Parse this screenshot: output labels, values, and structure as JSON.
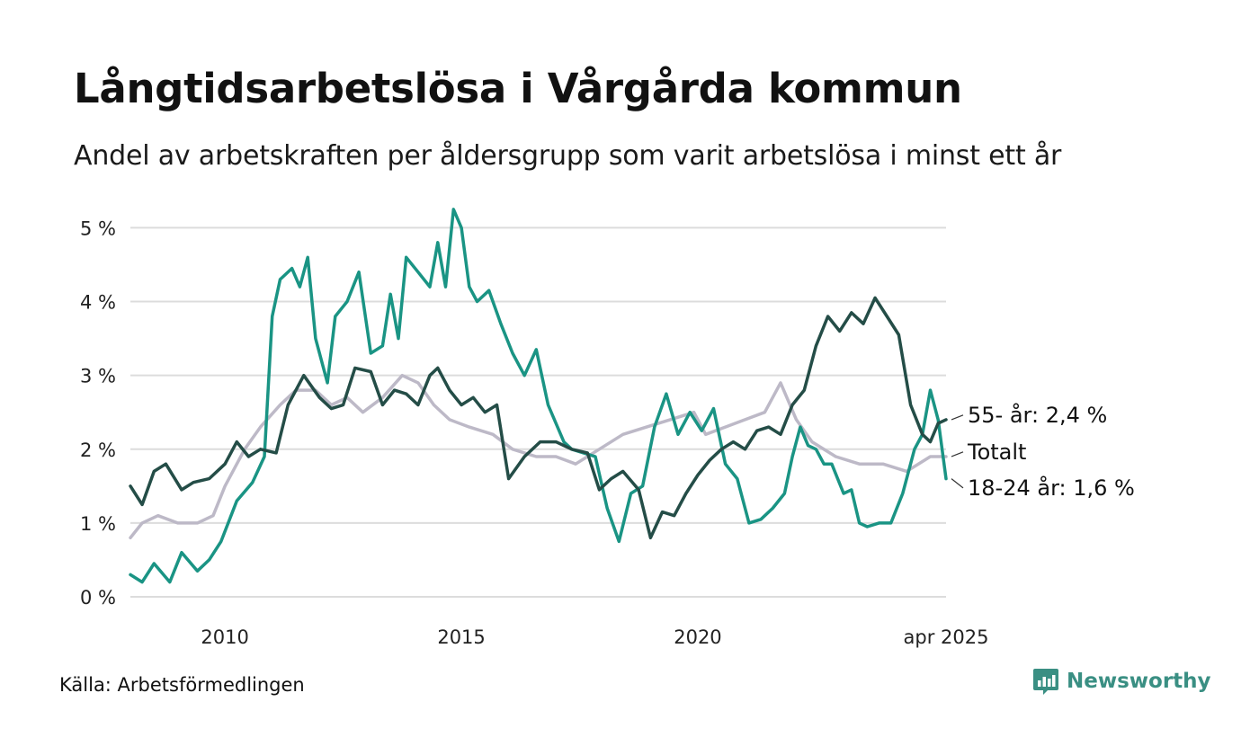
{
  "header": {
    "title": "Långtidsarbetslösa i Vårgårda kommun",
    "subtitle": "Andel av arbetskraften per åldersgrupp som varit arbetslösa i minst ett år"
  },
  "footer": {
    "source": "Källa: Arbetsförmedlingen",
    "brand": "Newsworthy",
    "brand_icon": "bar-chart-icon",
    "brand_color": "#3a8f83"
  },
  "chart_data": {
    "type": "line",
    "title": "Långtidsarbetslösa i Vårgårda kommun",
    "subtitle": "Andel av arbetskraften per åldersgrupp som varit arbetslösa i minst ett år",
    "xlabel": "",
    "ylabel": "",
    "x_range": [
      "2008-01",
      "2025-04"
    ],
    "ylim": [
      0,
      5.2
    ],
    "y_ticks": [
      0,
      1,
      2,
      3,
      4,
      5
    ],
    "y_tick_labels": [
      "0 %",
      "1 %",
      "2 %",
      "3 %",
      "4 %",
      "5 %"
    ],
    "x_ticks": [
      "2010-01",
      "2015-01",
      "2020-01",
      "2025-04"
    ],
    "x_tick_labels": [
      "2010",
      "2015",
      "2020",
      "apr 2025"
    ],
    "grid": "horizontal",
    "legend": "direct labels at line ends",
    "series": [
      {
        "name": "Totalt",
        "label": "Totalt",
        "color": "#bdb9c7",
        "points": [
          [
            "2008-01",
            0.8
          ],
          [
            "2008-04",
            1.0
          ],
          [
            "2008-08",
            1.1
          ],
          [
            "2009-01",
            1.0
          ],
          [
            "2009-06",
            1.0
          ],
          [
            "2009-10",
            1.1
          ],
          [
            "2010-01",
            1.5
          ],
          [
            "2010-06",
            2.0
          ],
          [
            "2010-10",
            2.3
          ],
          [
            "2011-03",
            2.6
          ],
          [
            "2011-07",
            2.8
          ],
          [
            "2011-12",
            2.8
          ],
          [
            "2012-04",
            2.6
          ],
          [
            "2012-08",
            2.7
          ],
          [
            "2012-12",
            2.5
          ],
          [
            "2013-05",
            2.7
          ],
          [
            "2013-10",
            3.0
          ],
          [
            "2014-02",
            2.9
          ],
          [
            "2014-06",
            2.6
          ],
          [
            "2014-10",
            2.4
          ],
          [
            "2015-03",
            2.3
          ],
          [
            "2015-09",
            2.2
          ],
          [
            "2016-02",
            2.0
          ],
          [
            "2016-08",
            1.9
          ],
          [
            "2017-01",
            1.9
          ],
          [
            "2017-06",
            1.8
          ],
          [
            "2017-12",
            2.0
          ],
          [
            "2018-06",
            2.2
          ],
          [
            "2018-12",
            2.3
          ],
          [
            "2019-06",
            2.4
          ],
          [
            "2019-12",
            2.5
          ],
          [
            "2020-03",
            2.2
          ],
          [
            "2020-08",
            2.3
          ],
          [
            "2021-01",
            2.4
          ],
          [
            "2021-06",
            2.5
          ],
          [
            "2021-10",
            2.9
          ],
          [
            "2022-02",
            2.4
          ],
          [
            "2022-06",
            2.1
          ],
          [
            "2022-12",
            1.9
          ],
          [
            "2023-06",
            1.8
          ],
          [
            "2023-12",
            1.8
          ],
          [
            "2024-06",
            1.7
          ],
          [
            "2024-12",
            1.9
          ],
          [
            "2025-04",
            1.9
          ]
        ]
      },
      {
        "name": "18-24 år",
        "label": "18-24 år: 1,6 %",
        "color": "#1a9484",
        "points": [
          [
            "2008-01",
            0.3
          ],
          [
            "2008-04",
            0.2
          ],
          [
            "2008-07",
            0.45
          ],
          [
            "2008-11",
            0.2
          ],
          [
            "2009-02",
            0.6
          ],
          [
            "2009-06",
            0.35
          ],
          [
            "2009-09",
            0.5
          ],
          [
            "2009-12",
            0.75
          ],
          [
            "2010-04",
            1.3
          ],
          [
            "2010-08",
            1.55
          ],
          [
            "2010-11",
            1.9
          ],
          [
            "2011-01",
            3.8
          ],
          [
            "2011-03",
            4.3
          ],
          [
            "2011-06",
            4.45
          ],
          [
            "2011-08",
            4.2
          ],
          [
            "2011-10",
            4.6
          ],
          [
            "2011-12",
            3.5
          ],
          [
            "2012-03",
            2.9
          ],
          [
            "2012-05",
            3.8
          ],
          [
            "2012-08",
            4.0
          ],
          [
            "2012-11",
            4.4
          ],
          [
            "2013-02",
            3.3
          ],
          [
            "2013-05",
            3.4
          ],
          [
            "2013-07",
            4.1
          ],
          [
            "2013-09",
            3.5
          ],
          [
            "2013-11",
            4.6
          ],
          [
            "2014-02",
            4.4
          ],
          [
            "2014-05",
            4.2
          ],
          [
            "2014-07",
            4.8
          ],
          [
            "2014-09",
            4.2
          ],
          [
            "2014-11",
            5.25
          ],
          [
            "2015-01",
            5.0
          ],
          [
            "2015-03",
            4.2
          ],
          [
            "2015-05",
            4.0
          ],
          [
            "2015-08",
            4.15
          ],
          [
            "2015-11",
            3.7
          ],
          [
            "2016-02",
            3.3
          ],
          [
            "2016-05",
            3.0
          ],
          [
            "2016-08",
            3.35
          ],
          [
            "2016-11",
            2.6
          ],
          [
            "2017-03",
            2.1
          ],
          [
            "2017-05",
            2.0
          ],
          [
            "2017-08",
            1.95
          ],
          [
            "2017-11",
            1.9
          ],
          [
            "2018-02",
            1.2
          ],
          [
            "2018-05",
            0.75
          ],
          [
            "2018-08",
            1.4
          ],
          [
            "2018-11",
            1.5
          ],
          [
            "2019-02",
            2.3
          ],
          [
            "2019-05",
            2.75
          ],
          [
            "2019-08",
            2.2
          ],
          [
            "2019-11",
            2.5
          ],
          [
            "2020-02",
            2.25
          ],
          [
            "2020-05",
            2.55
          ],
          [
            "2020-08",
            1.8
          ],
          [
            "2020-11",
            1.6
          ],
          [
            "2021-02",
            1.0
          ],
          [
            "2021-05",
            1.05
          ],
          [
            "2021-08",
            1.2
          ],
          [
            "2021-11",
            1.4
          ],
          [
            "2022-01",
            1.9
          ],
          [
            "2022-03",
            2.3
          ],
          [
            "2022-05",
            2.05
          ],
          [
            "2022-07",
            2.0
          ],
          [
            "2022-09",
            1.8
          ],
          [
            "2022-11",
            1.8
          ],
          [
            "2023-02",
            1.4
          ],
          [
            "2023-04",
            1.45
          ],
          [
            "2023-06",
            1.0
          ],
          [
            "2023-08",
            0.95
          ],
          [
            "2023-11",
            1.0
          ],
          [
            "2024-02",
            1.0
          ],
          [
            "2024-05",
            1.4
          ],
          [
            "2024-08",
            2.0
          ],
          [
            "2024-10",
            2.2
          ],
          [
            "2024-12",
            2.8
          ],
          [
            "2025-02",
            2.4
          ],
          [
            "2025-04",
            1.6
          ]
        ]
      },
      {
        "name": "55- år",
        "label": "55- år: 2,4 %",
        "color": "#244d47",
        "points": [
          [
            "2008-01",
            1.5
          ],
          [
            "2008-04",
            1.25
          ],
          [
            "2008-07",
            1.7
          ],
          [
            "2008-10",
            1.8
          ],
          [
            "2009-02",
            1.45
          ],
          [
            "2009-05",
            1.55
          ],
          [
            "2009-09",
            1.6
          ],
          [
            "2010-01",
            1.8
          ],
          [
            "2010-04",
            2.1
          ],
          [
            "2010-07",
            1.9
          ],
          [
            "2010-10",
            2.0
          ],
          [
            "2011-02",
            1.95
          ],
          [
            "2011-05",
            2.6
          ],
          [
            "2011-09",
            3.0
          ],
          [
            "2012-01",
            2.7
          ],
          [
            "2012-04",
            2.55
          ],
          [
            "2012-07",
            2.6
          ],
          [
            "2012-10",
            3.1
          ],
          [
            "2013-02",
            3.05
          ],
          [
            "2013-05",
            2.6
          ],
          [
            "2013-08",
            2.8
          ],
          [
            "2013-11",
            2.75
          ],
          [
            "2014-02",
            2.6
          ],
          [
            "2014-05",
            3.0
          ],
          [
            "2014-07",
            3.1
          ],
          [
            "2014-10",
            2.8
          ],
          [
            "2015-01",
            2.6
          ],
          [
            "2015-04",
            2.7
          ],
          [
            "2015-07",
            2.5
          ],
          [
            "2015-10",
            2.6
          ],
          [
            "2016-01",
            1.6
          ],
          [
            "2016-05",
            1.9
          ],
          [
            "2016-09",
            2.1
          ],
          [
            "2017-01",
            2.1
          ],
          [
            "2017-05",
            2.0
          ],
          [
            "2017-09",
            1.95
          ],
          [
            "2017-12",
            1.45
          ],
          [
            "2018-03",
            1.6
          ],
          [
            "2018-06",
            1.7
          ],
          [
            "2018-10",
            1.45
          ],
          [
            "2019-01",
            0.8
          ],
          [
            "2019-04",
            1.15
          ],
          [
            "2019-07",
            1.1
          ],
          [
            "2019-10",
            1.4
          ],
          [
            "2020-01",
            1.65
          ],
          [
            "2020-04",
            1.85
          ],
          [
            "2020-07",
            2.0
          ],
          [
            "2020-10",
            2.1
          ],
          [
            "2021-01",
            2.0
          ],
          [
            "2021-04",
            2.25
          ],
          [
            "2021-07",
            2.3
          ],
          [
            "2021-10",
            2.2
          ],
          [
            "2022-01",
            2.6
          ],
          [
            "2022-04",
            2.8
          ],
          [
            "2022-07",
            3.4
          ],
          [
            "2022-10",
            3.8
          ],
          [
            "2023-01",
            3.6
          ],
          [
            "2023-04",
            3.85
          ],
          [
            "2023-07",
            3.7
          ],
          [
            "2023-10",
            4.05
          ],
          [
            "2024-01",
            3.8
          ],
          [
            "2024-04",
            3.55
          ],
          [
            "2024-07",
            2.6
          ],
          [
            "2024-10",
            2.2
          ],
          [
            "2024-12",
            2.1
          ],
          [
            "2025-02",
            2.35
          ],
          [
            "2025-04",
            2.4
          ]
        ]
      }
    ]
  }
}
